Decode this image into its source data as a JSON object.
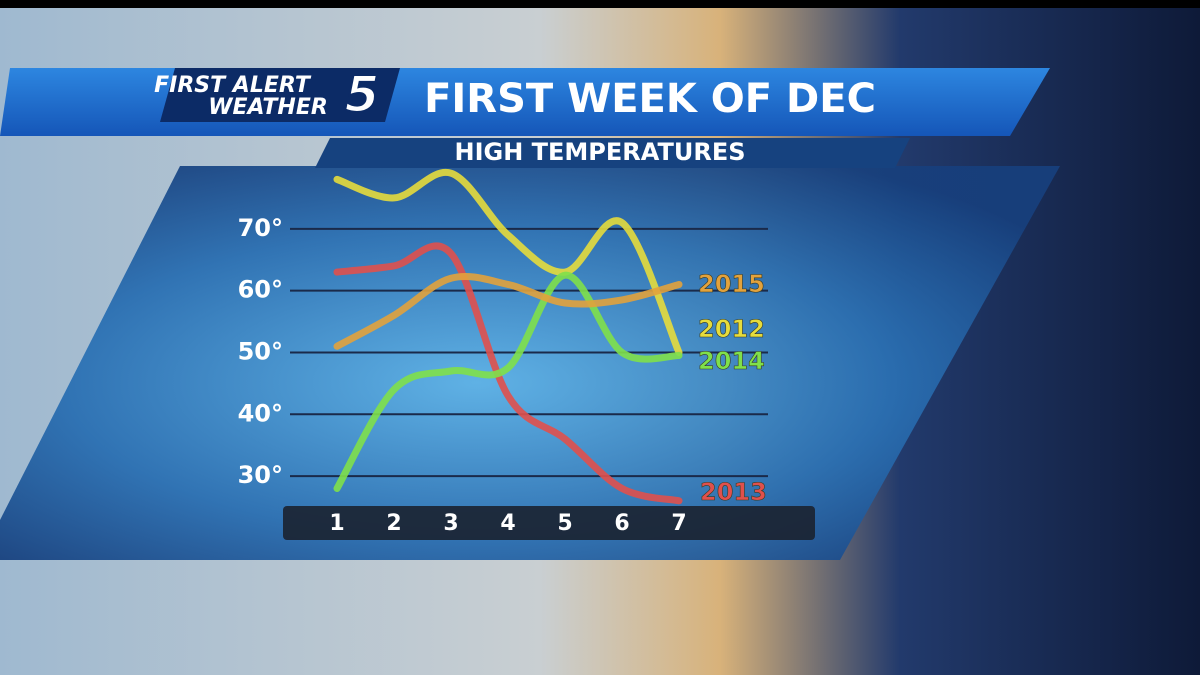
{
  "header": {
    "brand_line1": "FIRST ALERT",
    "brand_line2": "WEATHER",
    "channel": "5"
  },
  "chart_data": {
    "type": "line",
    "title": "FIRST WEEK OF DEC",
    "subtitle": "HIGH TEMPERATURES",
    "categories": [
      "1",
      "2",
      "3",
      "4",
      "5",
      "6",
      "7"
    ],
    "series": [
      {
        "name": "2012",
        "color": "#e6dc3c",
        "values": [
          78,
          75,
          79,
          69,
          63,
          71,
          50
        ]
      },
      {
        "name": "2013",
        "color": "#e0504c",
        "values": [
          63,
          64,
          66,
          43,
          36,
          28,
          26
        ]
      },
      {
        "name": "2014",
        "color": "#7fe04a",
        "values": [
          28,
          44,
          47,
          47.5,
          62.5,
          50,
          49.5
        ]
      },
      {
        "name": "2015",
        "color": "#e2a23c",
        "values": [
          51,
          56,
          62,
          61,
          58,
          58.5,
          61
        ]
      }
    ],
    "ylim": [
      25,
      80
    ],
    "yticks": [
      {
        "value": 30,
        "label": "30°"
      },
      {
        "value": 40,
        "label": "40°"
      },
      {
        "value": 50,
        "label": "50°"
      },
      {
        "value": 60,
        "label": "60°"
      },
      {
        "value": 70,
        "label": "70°"
      }
    ],
    "grid": true
  }
}
